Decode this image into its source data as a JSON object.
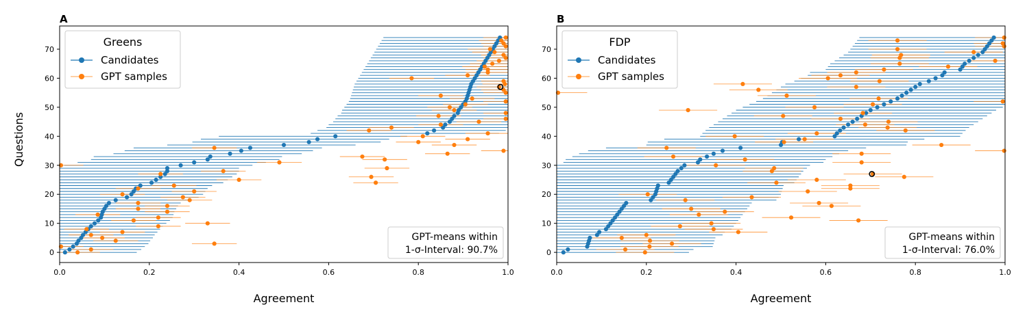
{
  "colors": {
    "candidates": "#1f77b4",
    "gpt": "#ff7f0e",
    "axis": "#000000",
    "legend_border": "#cccccc"
  },
  "y_axis_label": "Questions",
  "chart_data": [
    {
      "type": "scatter",
      "panel_label": "A",
      "party": "Greens",
      "xlabel": "Agreement",
      "ylabel": "Questions",
      "xlim": [
        0,
        1
      ],
      "ylim": [
        -3.5,
        78
      ],
      "xticks": [
        0.0,
        0.2,
        0.4,
        0.6,
        0.8,
        1.0
      ],
      "xtick_labels": [
        "0.0",
        "0.2",
        "0.4",
        "0.6",
        "0.8",
        "1.0"
      ],
      "yticks": [
        0,
        10,
        20,
        30,
        40,
        50,
        60,
        70
      ],
      "ytick_labels": [
        "0",
        "10",
        "20",
        "30",
        "40",
        "50",
        "60",
        "70"
      ],
      "legend": [
        "Candidates",
        "GPT samples"
      ],
      "legend_position": "top-left",
      "annotation_line1": "GPT-means within",
      "annotation_line2": "1-σ-Interval: 90.7%",
      "highlight": {
        "x": 0.983,
        "y": 57
      },
      "series": [
        {
          "name": "Candidates",
          "err_lo": 0.26,
          "err_hi": 0.16,
          "x": [
            0.012,
            0.022,
            0.03,
            0.038,
            0.042,
            0.048,
            0.052,
            0.058,
            0.064,
            0.07,
            0.078,
            0.086,
            0.092,
            0.094,
            0.096,
            0.1,
            0.104,
            0.11,
            0.125,
            0.15,
            0.16,
            0.165,
            0.17,
            0.18,
            0.205,
            0.215,
            0.225,
            0.235,
            0.24,
            0.24,
            0.27,
            0.3,
            0.33,
            0.336,
            0.38,
            0.405,
            0.425,
            0.5,
            0.556,
            0.575,
            0.615,
            0.82,
            0.835,
            0.855,
            0.86,
            0.87,
            0.875,
            0.88,
            0.888,
            0.89,
            0.895,
            0.9,
            0.905,
            0.908,
            0.91,
            0.912,
            0.914,
            0.916,
            0.918,
            0.922,
            0.926,
            0.93,
            0.934,
            0.938,
            0.942,
            0.946,
            0.95,
            0.954,
            0.958,
            0.962,
            0.966,
            0.97,
            0.974,
            0.978,
            0.982
          ]
        },
        {
          "name": "GPT samples",
          "err_lo": 0.05,
          "err_hi": 0.05,
          "y": [
            0,
            1,
            2,
            3,
            4,
            5,
            6,
            7,
            8,
            9,
            10,
            11,
            12,
            13,
            14,
            15,
            16,
            17,
            18,
            19,
            20,
            21,
            22,
            23,
            24,
            25,
            26,
            27,
            28,
            29,
            30,
            31,
            32,
            33,
            34,
            35,
            36,
            37,
            38,
            39,
            40,
            41,
            42,
            43,
            44,
            45,
            46,
            47,
            48,
            49,
            50,
            51,
            52,
            53,
            54,
            55,
            56,
            57,
            58,
            59,
            60,
            61,
            62,
            63,
            64,
            65,
            66,
            67,
            68,
            69,
            70,
            71,
            72,
            73,
            74
          ],
          "x": [
            0.04,
            0.07,
            0.003,
            0.345,
            0.125,
            0.095,
            0.07,
            0.14,
            0.06,
            0.22,
            0.33,
            0.165,
            0.22,
            0.085,
            0.24,
            0.175,
            0.24,
            0.175,
            0.29,
            0.275,
            0.14,
            0.3,
            0.175,
            0.255,
            0.705,
            0.4,
            0.695,
            0.225,
            0.365,
            0.73,
            0.003,
            0.49,
            0.725,
            0.675,
            0.865,
            0.99,
            0.345,
            0.88,
            0.8,
            0.91,
            0.81,
            0.955,
            0.69,
            0.74,
            0.85,
            0.935,
            0.995,
            0.845,
            0.995,
            0.88,
            0.87,
            0.905,
            0.995,
            0.92,
            0.85,
            0.995,
            0.99,
            0.98,
            0.993,
            0.99,
            0.785,
            0.91,
            0.955,
            0.955,
            0.948,
            0.965,
            0.98,
            0.995,
            0.99,
            0.97,
            0.96,
            0.995,
            0.99,
            0.985,
            0.995
          ]
        }
      ]
    },
    {
      "type": "scatter",
      "panel_label": "B",
      "party": "FDP",
      "xlabel": "Agreement",
      "ylabel": "",
      "xlim": [
        0,
        1
      ],
      "ylim": [
        -3.5,
        78
      ],
      "xticks": [
        0.0,
        0.2,
        0.4,
        0.6,
        0.8,
        1.0
      ],
      "xtick_labels": [
        "0.0",
        "0.2",
        "0.4",
        "0.6",
        "0.8",
        "1.0"
      ],
      "yticks": [
        0,
        10,
        20,
        30,
        40,
        50,
        60,
        70
      ],
      "ytick_labels": [
        "0",
        "10",
        "20",
        "30",
        "40",
        "50",
        "60",
        "70"
      ],
      "legend": [
        "Candidates",
        "GPT samples"
      ],
      "legend_position": "top-left",
      "annotation_line1": "GPT-means within",
      "annotation_line2": "1-σ-Interval: 76.0%",
      "highlight": {
        "x": 0.703,
        "y": 27
      },
      "series": [
        {
          "name": "Candidates",
          "err_lo": 0.3,
          "err_hi": 0.28,
          "x": [
            0.015,
            0.025,
            0.068,
            0.07,
            0.072,
            0.074,
            0.09,
            0.095,
            0.11,
            0.115,
            0.12,
            0.125,
            0.13,
            0.135,
            0.14,
            0.145,
            0.15,
            0.155,
            0.21,
            0.215,
            0.22,
            0.222,
            0.224,
            0.226,
            0.25,
            0.255,
            0.26,
            0.265,
            0.27,
            0.278,
            0.285,
            0.315,
            0.32,
            0.335,
            0.35,
            0.37,
            0.41,
            0.5,
            0.503,
            0.54,
            0.62,
            0.625,
            0.632,
            0.64,
            0.65,
            0.66,
            0.67,
            0.68,
            0.69,
            0.7,
            0.715,
            0.73,
            0.745,
            0.76,
            0.77,
            0.78,
            0.79,
            0.8,
            0.81,
            0.83,
            0.845,
            0.86,
            0.865,
            0.9,
            0.905,
            0.91,
            0.92,
            0.93,
            0.94,
            0.95,
            0.955,
            0.96,
            0.965,
            0.97,
            0.975
          ]
        },
        {
          "name": "GPT samples",
          "err_lo": 0.065,
          "err_hi": 0.065,
          "y": [
            0,
            1,
            2,
            3,
            4,
            5,
            6,
            7,
            8,
            9,
            10,
            11,
            12,
            13,
            14,
            15,
            16,
            17,
            18,
            19,
            20,
            21,
            22,
            23,
            24,
            25,
            26,
            27,
            28,
            29,
            30,
            31,
            32,
            33,
            34,
            35,
            36,
            37,
            38,
            39,
            40,
            41,
            42,
            43,
            44,
            45,
            46,
            47,
            48,
            49,
            50,
            51,
            52,
            53,
            54,
            55,
            56,
            57,
            58,
            59,
            60,
            61,
            62,
            63,
            64,
            65,
            66,
            67,
            68,
            69,
            70,
            71,
            72,
            73,
            74
          ],
          "x": [
            0.197,
            0.153,
            0.207,
            0.257,
            0.208,
            0.145,
            0.2,
            0.405,
            0.35,
            0.275,
            0.345,
            0.673,
            0.523,
            0.317,
            0.375,
            0.3,
            0.613,
            0.585,
            0.287,
            0.435,
            0.203,
            0.56,
            0.655,
            0.655,
            0.49,
            0.58,
            0.775,
            0.705,
            0.48,
            0.485,
            0.355,
            0.68,
            0.42,
            0.26,
            0.68,
            0.998,
            0.245,
            0.858,
            0.507,
            0.553,
            0.397,
            0.58,
            0.778,
            0.738,
            0.688,
            0.74,
            0.633,
            0.505,
            0.683,
            0.293,
            0.575,
            0.705,
            0.995,
            0.718,
            0.513,
            0.003,
            0.45,
            0.668,
            0.415,
            0.72,
            0.605,
            0.633,
            0.668,
            0.73,
            0.873,
            0.765,
            0.978,
            0.765,
            0.768,
            0.93,
            0.76,
            0.998,
            0.995,
            0.76,
            0.998
          ]
        }
      ]
    }
  ]
}
